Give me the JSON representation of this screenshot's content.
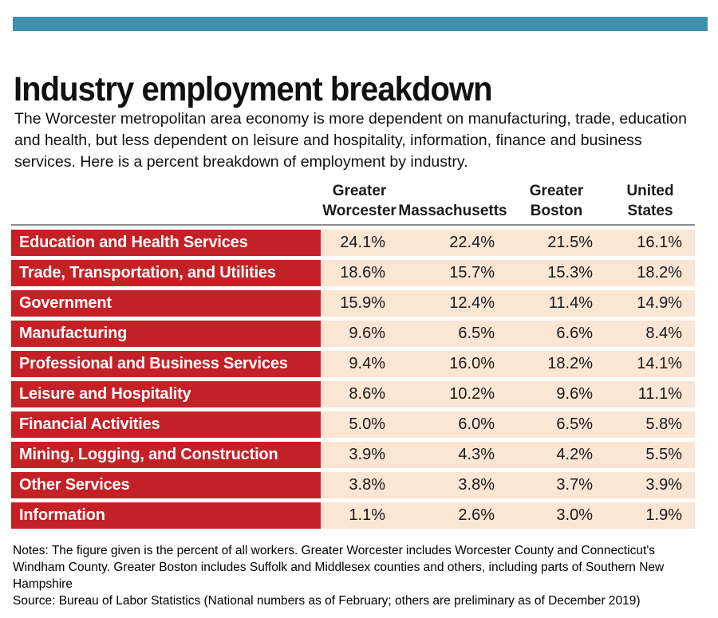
{
  "colors": {
    "teal": "#3f90ad",
    "red": "#c42127",
    "peach": "#fbe5d3",
    "rule": "#8c8c8c"
  },
  "header": {
    "title": "Industry employment breakdown",
    "subtitle": "The Worcester metropolitan area economy is more dependent on manufacturing, trade, education and health, but less dependent on leisure and hospitality, information, finance and business services. Here is a percent breakdown of employment by industry."
  },
  "table": {
    "columns": [
      {
        "name": "Greater Worcester",
        "lines": [
          "Greater",
          "Worcester"
        ]
      },
      {
        "name": "Massachusetts",
        "lines": [
          "",
          "Massachusetts"
        ]
      },
      {
        "name": "Greater Boston",
        "lines": [
          "Greater",
          "Boston"
        ]
      },
      {
        "name": "United States",
        "lines": [
          "United",
          "States"
        ]
      }
    ],
    "rows": [
      {
        "label": "Education and Health Services",
        "values": [
          "24.1%",
          "22.4%",
          "21.5%",
          "16.1%"
        ]
      },
      {
        "label": "Trade, Transportation, and Utilities",
        "values": [
          "18.6%",
          "15.7%",
          "15.3%",
          "18.2%"
        ]
      },
      {
        "label": "Government",
        "values": [
          "15.9%",
          "12.4%",
          "11.4%",
          "14.9%"
        ]
      },
      {
        "label": "Manufacturing",
        "values": [
          "9.6%",
          "6.5%",
          "6.6%",
          "8.4%"
        ]
      },
      {
        "label": "Professional and Business Services",
        "values": [
          "9.4%",
          "16.0%",
          "18.2%",
          "14.1%"
        ]
      },
      {
        "label": "Leisure and Hospitality",
        "values": [
          "8.6%",
          "10.2%",
          "9.6%",
          "11.1%"
        ]
      },
      {
        "label": "Financial Activities",
        "values": [
          "5.0%",
          "6.0%",
          "6.5%",
          "5.8%"
        ]
      },
      {
        "label": "Mining, Logging, and Construction",
        "values": [
          "3.9%",
          "4.3%",
          "4.2%",
          "5.5%"
        ]
      },
      {
        "label": "Other Services",
        "values": [
          "3.8%",
          "3.8%",
          "3.7%",
          "3.9%"
        ]
      },
      {
        "label": "Information",
        "values": [
          "1.1%",
          "2.6%",
          "3.0%",
          "1.9%"
        ]
      }
    ]
  },
  "footer": {
    "notes": "Notes: The figure given is the percent of all workers. Greater Worcester includes Worcester County and Connecticut's Windham County. Greater Boston includes Suffolk and Middlesex counties and others, including parts of Southern New Hampshire",
    "source": "Source: Bureau of Labor Statistics (National numbers as of February; others are preliminary as of December 2019)"
  },
  "chart_data": {
    "type": "table",
    "title": "Industry employment breakdown",
    "unit": "percent of all workers",
    "categories": [
      "Education and Health Services",
      "Trade, Transportation, and Utilities",
      "Government",
      "Manufacturing",
      "Professional and Business Services",
      "Leisure and Hospitality",
      "Financial Activities",
      "Mining, Logging, and Construction",
      "Other Services",
      "Information"
    ],
    "series": [
      {
        "name": "Greater Worcester",
        "values": [
          24.1,
          18.6,
          15.9,
          9.6,
          9.4,
          8.6,
          5.0,
          3.9,
          3.8,
          1.1
        ]
      },
      {
        "name": "Massachusetts",
        "values": [
          22.4,
          15.7,
          12.4,
          6.5,
          16.0,
          10.2,
          6.0,
          4.3,
          3.8,
          2.6
        ]
      },
      {
        "name": "Greater Boston",
        "values": [
          21.5,
          15.3,
          11.4,
          6.6,
          18.2,
          9.6,
          6.5,
          4.2,
          3.7,
          3.0
        ]
      },
      {
        "name": "United States",
        "values": [
          16.1,
          18.2,
          14.9,
          8.4,
          14.1,
          11.1,
          5.8,
          5.5,
          3.9,
          1.9
        ]
      }
    ]
  }
}
